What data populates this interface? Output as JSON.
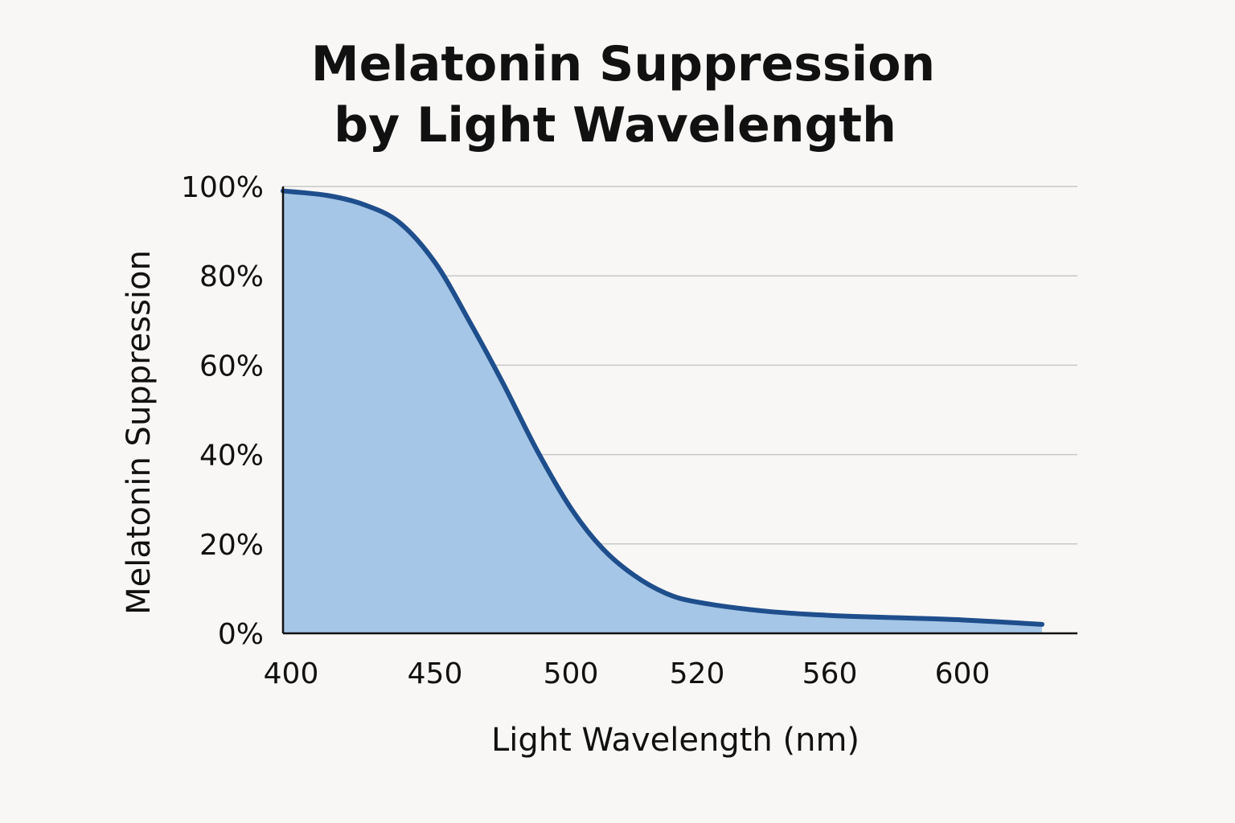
{
  "chart_data": {
    "type": "area",
    "title": [
      "Melatonin Suppression",
      "by Light Wavelength"
    ],
    "xlabel": "Light Wavelength (nm)",
    "ylabel": "Melatonin Suppression",
    "x_tick_labels": [
      "400",
      "450",
      "500",
      "520",
      "560",
      "600"
    ],
    "y_tick_labels": [
      "0%",
      "20%",
      "40%",
      "60%",
      "80%",
      "100%"
    ],
    "ylim": [
      0,
      100
    ],
    "grid": true,
    "legend": "none",
    "colors": {
      "fill": "#a5c6e6",
      "line": "#1f4e8c",
      "grid": "#c8c8c8",
      "axis": "#111111",
      "background": "#f8f7f5"
    },
    "series": [
      {
        "name": "Melatonin Suppression",
        "points": [
          {
            "x_pos": 0.0,
            "y": 99
          },
          {
            "x_pos": 0.25,
            "y": 98
          },
          {
            "x_pos": 0.5,
            "y": 96
          },
          {
            "x_pos": 0.75,
            "y": 92
          },
          {
            "x_pos": 1.0,
            "y": 83
          },
          {
            "x_pos": 1.25,
            "y": 70
          },
          {
            "x_pos": 1.5,
            "y": 56
          },
          {
            "x_pos": 1.75,
            "y": 41
          },
          {
            "x_pos": 2.0,
            "y": 28
          },
          {
            "x_pos": 2.25,
            "y": 19
          },
          {
            "x_pos": 2.5,
            "y": 13
          },
          {
            "x_pos": 2.75,
            "y": 9
          },
          {
            "x_pos": 3.0,
            "y": 7
          },
          {
            "x_pos": 3.5,
            "y": 5
          },
          {
            "x_pos": 4.0,
            "y": 4
          },
          {
            "x_pos": 4.5,
            "y": 3.5
          },
          {
            "x_pos": 5.0,
            "y": 3
          },
          {
            "x_pos": 5.6,
            "y": 2
          }
        ]
      }
    ]
  }
}
